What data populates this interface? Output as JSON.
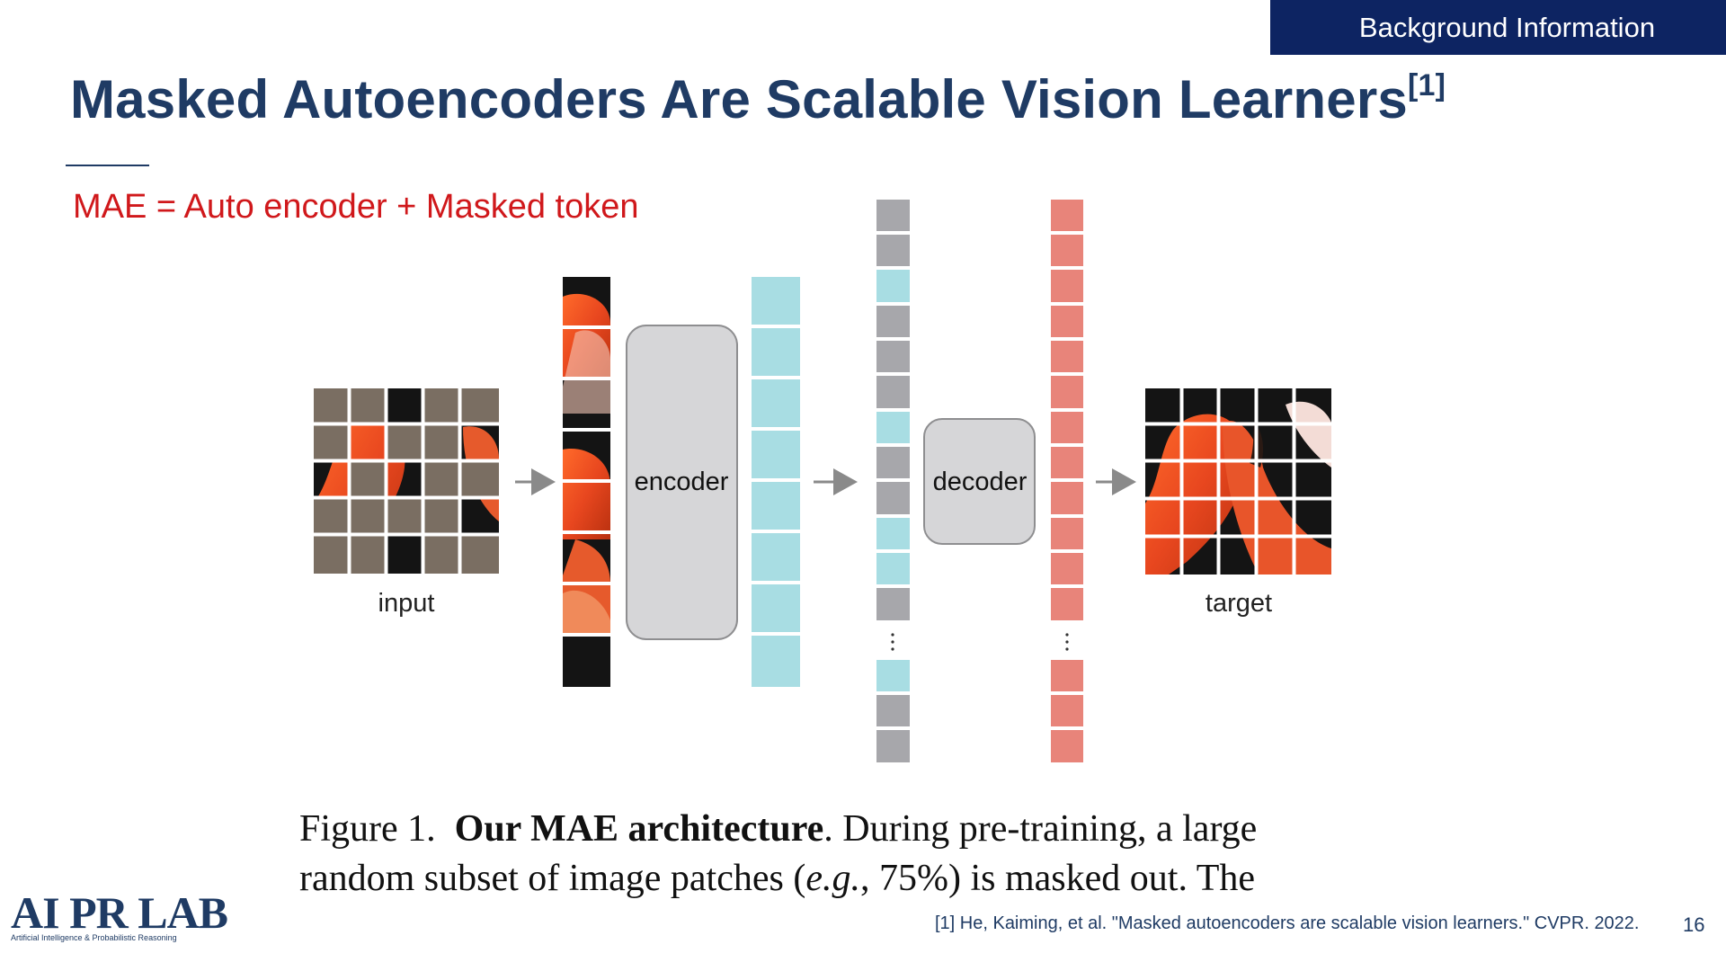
{
  "header": {
    "section_tag": "Background Information"
  },
  "slide": {
    "title": "Masked Autoencoders Are Scalable Vision Learners",
    "title_ref": "[1]",
    "subtitle": "MAE = Auto encoder + Masked token",
    "page_number": "16"
  },
  "figure": {
    "input_label": "input",
    "encoder_label": "encoder",
    "decoder_label": "decoder",
    "target_label": "target",
    "caption": {
      "fig_label": "Figure 1.",
      "bold": "Our MAE architecture",
      "line1_rest": ". During pre-training, a large",
      "line2_start": "random subset of image patches (",
      "line2_italic": "e.g.",
      "line2_end": ", 75%) is masked out. The"
    }
  },
  "footer": {
    "reference": "[1] He, Kaiming, et al. \"Masked autoencoders are scalable vision learners.\" CVPR. 2022.",
    "logo_text": "AI PR LAB",
    "logo_subtext": "Artificial Intelligence & Probabilistic Reasoning"
  },
  "colors": {
    "header_bg": "#0d2462",
    "title": "#1f3b64",
    "subtitle": "#d0181b",
    "encoded_token": "#a8dde3",
    "mask_token": "#a7a7ab",
    "decoder_output": "#e8847a",
    "masked_patch": "#7a6e62"
  }
}
